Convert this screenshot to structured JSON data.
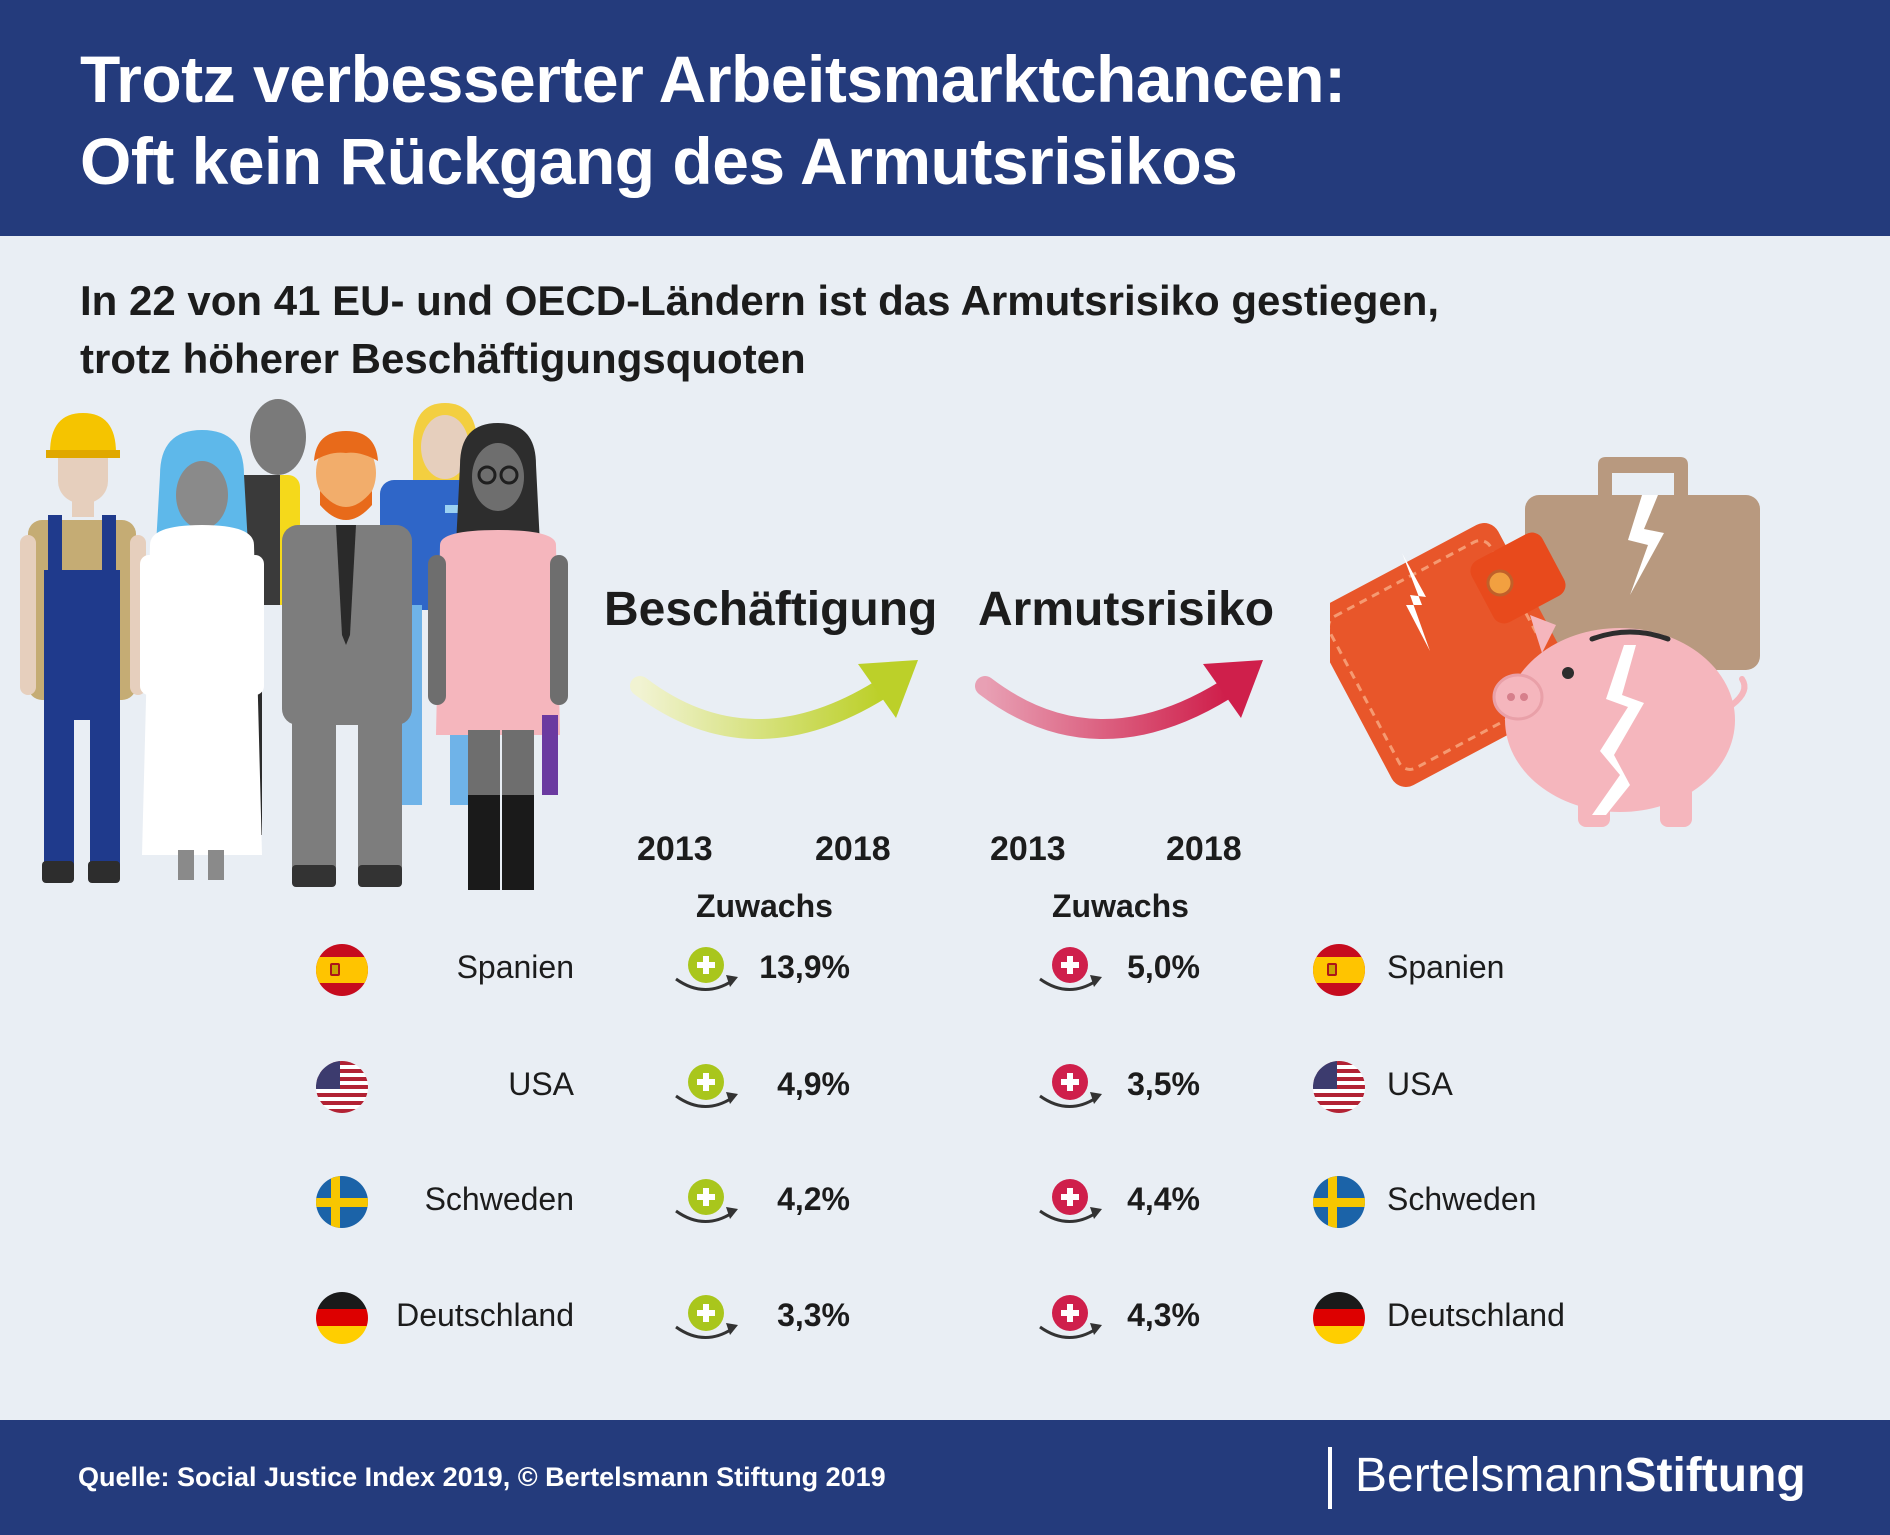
{
  "header": {
    "title_line1": "Trotz verbesserter Arbeitsmarktchancen:",
    "title_line2": "Oft kein Rückgang des Armutsrisikos"
  },
  "subtitle": {
    "line1": "In 22 von 41 EU- und OECD-Ländern ist das Armutsrisiko gestiegen,",
    "line2": "trotz höherer Beschäftigungsquoten"
  },
  "metrics": {
    "employment": {
      "label": "Beschäftigung",
      "year_start": "2013",
      "year_end": "2018",
      "change_label": "Zuwachs",
      "color": "#a9c61c"
    },
    "poverty": {
      "label": "Armutsrisiko",
      "year_start": "2013",
      "year_end": "2018",
      "change_label": "Zuwachs",
      "color": "#cf1f4b"
    }
  },
  "countries": [
    {
      "name": "Spanien",
      "flag": "spain-flag-icon",
      "employment_growth": "13,9%",
      "poverty_growth": "5,0%"
    },
    {
      "name": "USA",
      "flag": "usa-flag-icon",
      "employment_growth": "4,9%",
      "poverty_growth": "3,5%"
    },
    {
      "name": "Schweden",
      "flag": "sweden-flag-icon",
      "employment_growth": "4,2%",
      "poverty_growth": "4,4%"
    },
    {
      "name": "Deutschland",
      "flag": "germany-flag-icon",
      "employment_growth": "3,3%",
      "poverty_growth": "4,3%"
    }
  ],
  "illustrations": {
    "left": "workers-group-illustration",
    "right": "broken-wallet-piggybank-briefcase-illustration"
  },
  "footer": {
    "source": "Quelle: Social Justice Index 2019, © Bertelsmann Stiftung 2019",
    "brand_part1": "Bertelsmann",
    "brand_part2": "Stiftung"
  },
  "colors": {
    "header_bg": "#243b7c",
    "page_bg": "#e9eef4",
    "employment_accent": "#a9c61c",
    "poverty_accent": "#cf1f4b"
  }
}
